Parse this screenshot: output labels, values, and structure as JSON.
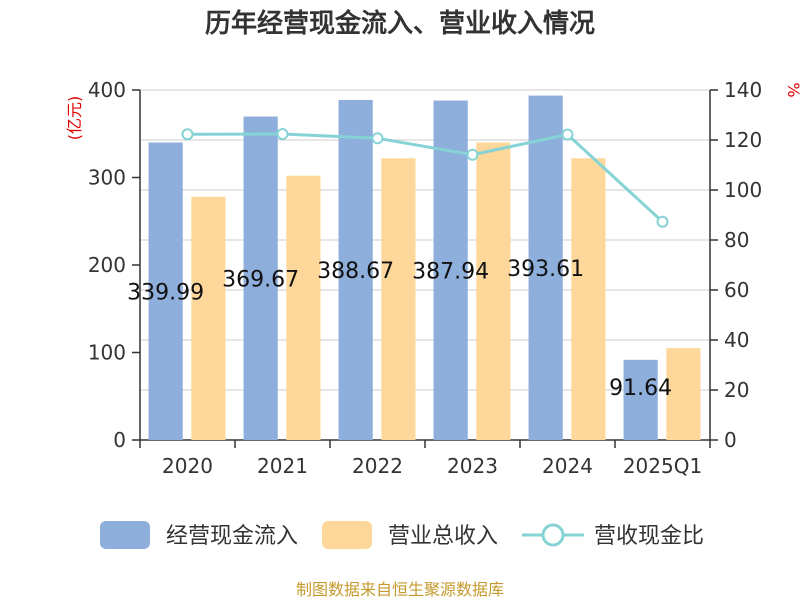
{
  "chart_data": {
    "type": "bar",
    "title": "历年经营现金流入、营业收入情况",
    "categories": [
      "2020",
      "2021",
      "2022",
      "2023",
      "2024",
      "2025Q1"
    ],
    "series": [
      {
        "name": "经营现金流入",
        "type": "bar",
        "axis": "left",
        "color": "#8eaedb",
        "values": [
          339.99,
          369.67,
          388.67,
          387.94,
          393.61,
          91.64
        ],
        "labels": [
          "339.99",
          "369.67",
          "388.67",
          "387.94",
          "393.61",
          "91.64"
        ]
      },
      {
        "name": "营业总收入",
        "type": "bar",
        "axis": "left",
        "color": "#fed89a",
        "values": [
          278,
          302,
          322,
          340,
          322,
          105
        ]
      },
      {
        "name": "营收现金比",
        "type": "line",
        "axis": "right",
        "color": "#86d3d6",
        "values": [
          122.3,
          122.4,
          120.7,
          114.1,
          122.2,
          87.3
        ]
      }
    ],
    "y_left": {
      "label": "(亿元)",
      "ylim": [
        0,
        400
      ],
      "ticks": [
        "0",
        "100",
        "200",
        "300",
        "400"
      ]
    },
    "y_right": {
      "label": "%",
      "ylim": [
        0,
        140
      ],
      "ticks": [
        "0",
        "20",
        "40",
        "60",
        "80",
        "100",
        "120",
        "140"
      ]
    },
    "grid": true,
    "legend_position": "bottom"
  },
  "legend": [
    {
      "label": "经营现金流入",
      "kind": "bar",
      "color": "#8eaedb"
    },
    {
      "label": "营业总收入",
      "kind": "bar",
      "color": "#fed89a"
    },
    {
      "label": "营收现金比",
      "kind": "line",
      "color": "#86d3d6"
    }
  ],
  "source": "制图数据来自恒生聚源数据库"
}
